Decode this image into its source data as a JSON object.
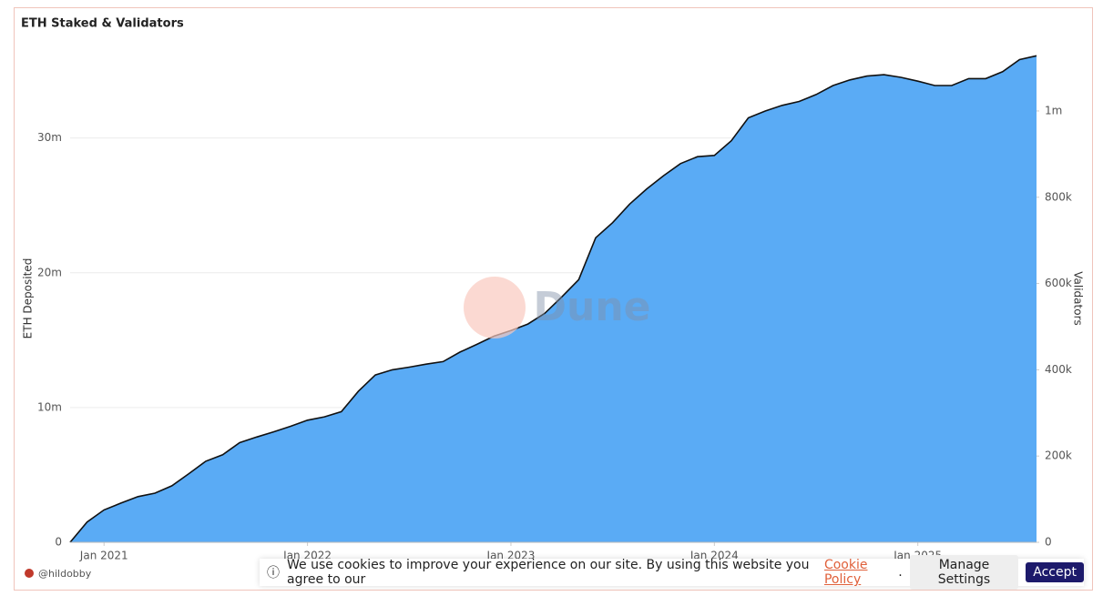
{
  "chart_data": {
    "type": "area",
    "title": "ETH Staked & Validators",
    "ylabel": "ETH Deposited",
    "y2label": "Validators",
    "x": [
      "2020-11",
      "2020-12",
      "2021-01",
      "2021-02",
      "2021-03",
      "2021-04",
      "2021-05",
      "2021-06",
      "2021-07",
      "2021-08",
      "2021-09",
      "2021-10",
      "2021-11",
      "2021-12",
      "2022-01",
      "2022-02",
      "2022-03",
      "2022-04",
      "2022-05",
      "2022-06",
      "2022-07",
      "2022-08",
      "2022-09",
      "2022-10",
      "2022-11",
      "2022-12",
      "2023-01",
      "2023-02",
      "2023-03",
      "2023-04",
      "2023-05",
      "2023-06",
      "2023-07",
      "2023-08",
      "2023-09",
      "2023-10",
      "2023-11",
      "2023-12",
      "2024-01",
      "2024-02",
      "2024-03",
      "2024-04",
      "2024-05",
      "2024-06",
      "2024-07",
      "2024-08",
      "2024-09",
      "2024-10",
      "2024-11",
      "2024-12",
      "2025-01",
      "2025-02",
      "2025-03",
      "2025-04",
      "2025-05",
      "2025-06",
      "2025-07",
      "2025-08"
    ],
    "xlim": [
      "2020-11",
      "2025-08"
    ],
    "xticks": [
      {
        "value": "2021-01",
        "label": "Jan 2021"
      },
      {
        "value": "2022-01",
        "label": "Jan 2022"
      },
      {
        "value": "2023-01",
        "label": "Jan 2023"
      },
      {
        "value": "2024-01",
        "label": "Jan 2024"
      },
      {
        "value": "2025-01",
        "label": "Jan 2025"
      }
    ],
    "series": [
      {
        "name": "ETH Deposited",
        "color": "#5aabf5",
        "values": [
          0,
          1500000,
          2400000,
          2900000,
          3400000,
          3650000,
          4200000,
          5100000,
          6000000,
          6500000,
          7400000,
          7800000,
          8200000,
          8600000,
          9050000,
          9300000,
          9700000,
          11200000,
          12400000,
          12800000,
          13000000,
          13200000,
          13400000,
          14100000,
          14700000,
          15300000,
          15700000,
          16200000,
          17000000,
          18200000,
          19500000,
          22600000,
          23700000,
          25100000,
          26200000,
          27200000,
          28100000,
          28600000,
          28700000,
          29800000,
          31500000,
          32000000,
          32400000,
          32700000,
          33200000,
          33900000,
          34300000,
          34600000,
          34700000,
          34500000,
          34200000,
          33900000,
          33900000,
          34400000,
          34400000,
          34900000,
          35800000,
          36100000
        ]
      },
      {
        "name": "Validators",
        "color": "#111111",
        "axis": "y2",
        "values": [
          0,
          47000,
          75000,
          91000,
          106000,
          114000,
          131000,
          159000,
          188000,
          203000,
          231000,
          244000,
          256000,
          269000,
          283000,
          291000,
          303000,
          350000,
          388000,
          400000,
          406000,
          413000,
          419000,
          441000,
          459000,
          478000,
          491000,
          506000,
          531000,
          569000,
          609000,
          706000,
          741000,
          784000,
          819000,
          850000,
          878000,
          894000,
          897000,
          931000,
          984000,
          1000000,
          1013000,
          1022000,
          1038000,
          1059000,
          1072000,
          1081000,
          1084000,
          1078000,
          1069000,
          1059000,
          1059000,
          1075000,
          1075000,
          1091000,
          1119000,
          1128000
        ]
      }
    ],
    "ylim": [
      0,
      37000000
    ],
    "yticks": [
      0,
      {
        "value": 10000000,
        "label": "10m"
      },
      {
        "value": 20000000,
        "label": "20m"
      },
      {
        "value": 30000000,
        "label": "30m"
      }
    ],
    "y2lim": [
      0,
      1156000
    ],
    "y2ticks": [
      0,
      {
        "value": 200000,
        "label": "200k"
      },
      {
        "value": 400000,
        "label": "400k"
      },
      {
        "value": 600000,
        "label": "600k"
      },
      {
        "value": 800000,
        "label": "800k"
      },
      {
        "value": 1000000,
        "label": "1m"
      }
    ],
    "grid": true,
    "watermark": "Dune",
    "author": "@hildobby"
  },
  "cookie_banner": {
    "text": "We use cookies to improve your experience on our site. By using this website you agree to our",
    "link": "Cookie Policy",
    "end": ".",
    "manage": "Manage Settings",
    "accept": "Accept"
  }
}
